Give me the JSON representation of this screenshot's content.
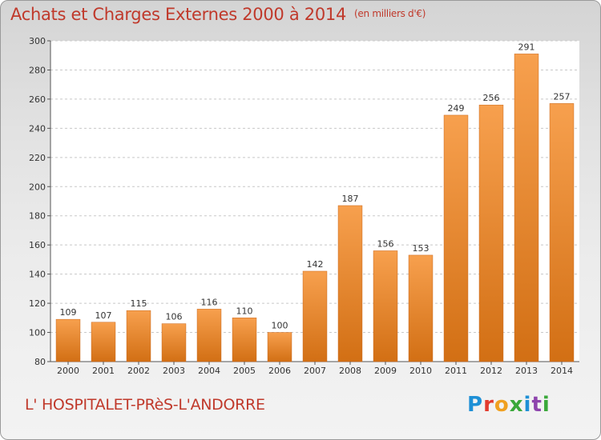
{
  "header": {
    "title": "Achats et Charges Externes 2000 à 2014",
    "subtitle": "(en milliers d'€)"
  },
  "footer": {
    "place": "L' HOSPITALET-PRèS-L'ANDORRE",
    "logo": "Proxiti",
    "logo_colors": [
      "#1e90d6",
      "#e23b2e",
      "#f0a020",
      "#3aa83a",
      "#1e90d6",
      "#8e44ad",
      "#3aa83a"
    ]
  },
  "chart_data": {
    "type": "bar",
    "categories": [
      "2000",
      "2001",
      "2002",
      "2003",
      "2004",
      "2005",
      "2006",
      "2007",
      "2008",
      "2009",
      "2010",
      "2011",
      "2012",
      "2013",
      "2014"
    ],
    "values": [
      109,
      107,
      115,
      106,
      116,
      110,
      100,
      142,
      187,
      156,
      153,
      249,
      256,
      291,
      257
    ],
    "ylim": [
      80,
      300
    ],
    "yticks": [
      80,
      100,
      120,
      140,
      160,
      180,
      200,
      220,
      240,
      260,
      280,
      300
    ],
    "grid": true,
    "bar_color_light": "#f7a04e",
    "bar_color_dark": "#d26f14"
  }
}
